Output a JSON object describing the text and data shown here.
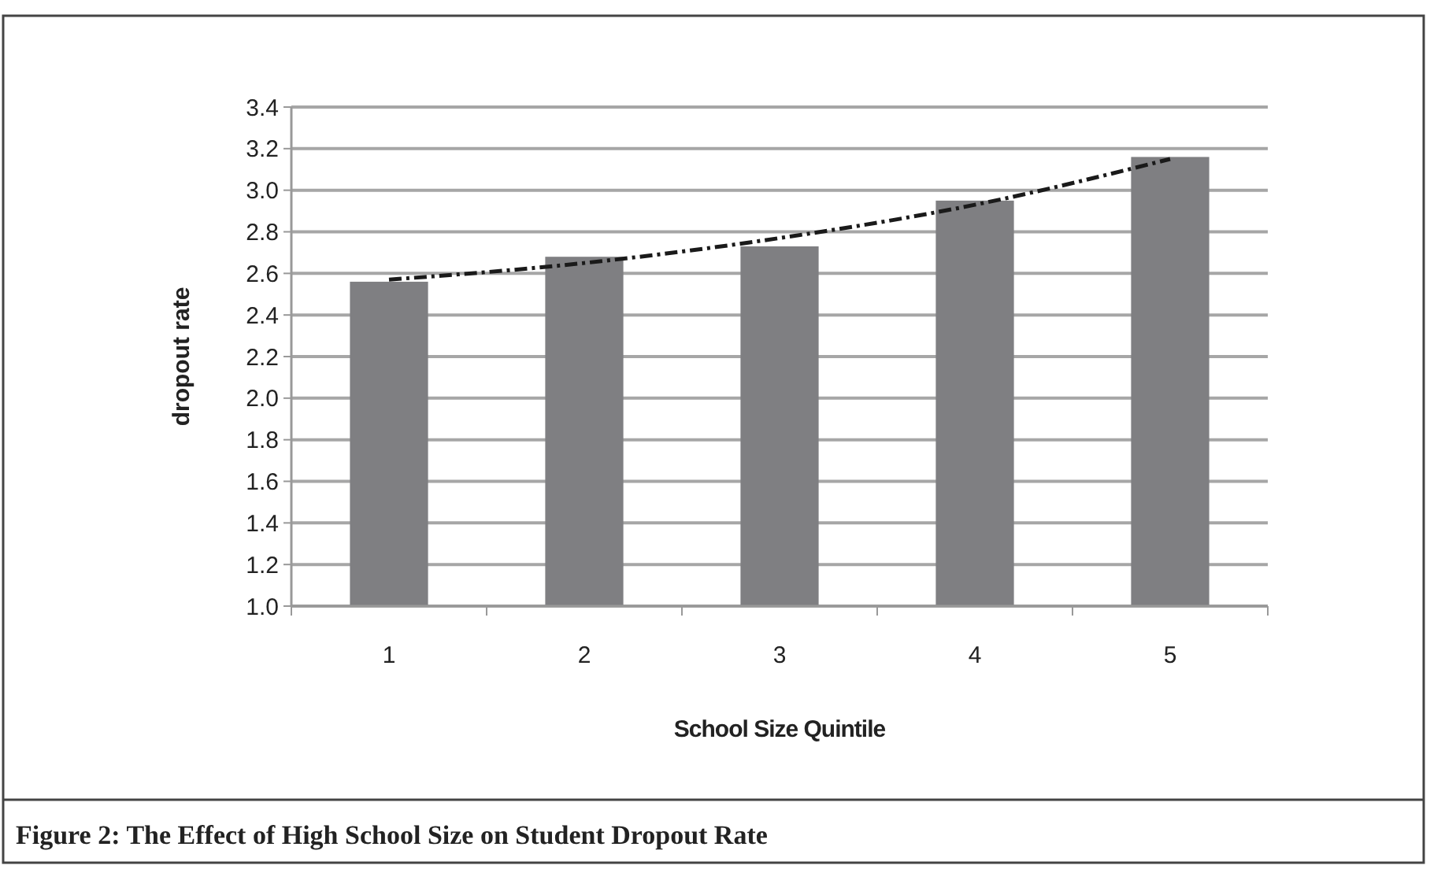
{
  "chart_data": {
    "type": "bar",
    "title": "Figure 2: The Effect of High School Size on Student Dropout Rate",
    "xlabel": "School Size Quintile",
    "ylabel": "dropout rate",
    "categories": [
      "1",
      "2",
      "3",
      "4",
      "5"
    ],
    "series": [
      {
        "color": "#7f7f82",
        "values": [
          2.56,
          2.68,
          2.73,
          2.95,
          3.16
        ]
      },
      {
        "type": "line",
        "color": "#1a1a1a",
        "line_style": "dashed",
        "x": [
          "1",
          "2",
          "3",
          "4",
          "5"
        ],
        "values": [
          2.57,
          2.65,
          2.77,
          2.93,
          3.15
        ]
      }
    ],
    "ylim": [
      1.0,
      3.4
    ],
    "yticks": [
      {
        "value": 1.0,
        "label": "1.0"
      },
      {
        "value": 1.2,
        "label": "1.2"
      },
      {
        "value": 1.4,
        "label": "1.4"
      },
      {
        "value": 1.6,
        "label": "1.6"
      },
      {
        "value": 1.8,
        "label": "1.8"
      },
      {
        "value": 2.0,
        "label": "2.0"
      },
      {
        "value": 2.2,
        "label": "2.2"
      },
      {
        "value": 2.4,
        "label": "2.4"
      },
      {
        "value": 2.6,
        "label": "2.6"
      },
      {
        "value": 2.8,
        "label": "2.8"
      },
      {
        "value": 3.0,
        "label": "3.0"
      },
      {
        "value": 3.2,
        "label": "3.2"
      },
      {
        "value": 3.4,
        "label": "3.4"
      }
    ],
    "grid": "y"
  }
}
